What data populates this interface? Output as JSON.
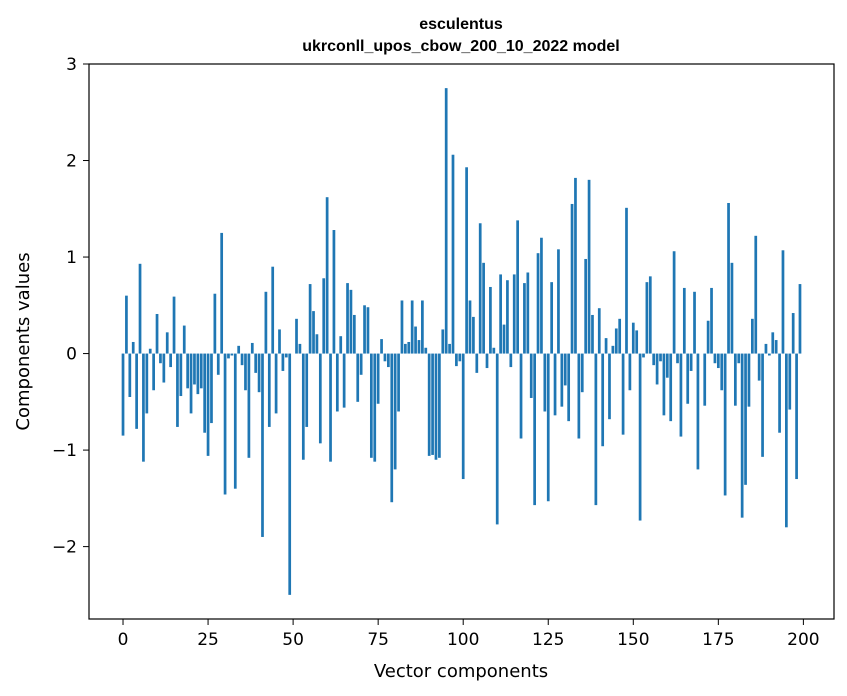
{
  "chart_data": {
    "type": "bar",
    "title": "esculentus",
    "subtitle": "ukrconll_upos_cbow_200_10_2022 model",
    "xlabel": "Vector components",
    "ylabel": "Components values",
    "xlim": [
      -10,
      209
    ],
    "ylim": [
      -2.75,
      3.0
    ],
    "xticks": [
      0,
      25,
      50,
      75,
      100,
      125,
      150,
      175,
      200
    ],
    "yticks": [
      -2,
      -1,
      0,
      1,
      2,
      3
    ],
    "ytick_labels": [
      "−2",
      "−1",
      "0",
      "1",
      "2",
      "3"
    ],
    "bar_color": "#1f77b4",
    "values": [
      -0.85,
      0.6,
      -0.45,
      0.12,
      -0.78,
      0.93,
      -1.12,
      -0.62,
      0.05,
      -0.38,
      0.41,
      -0.1,
      -0.3,
      0.22,
      -0.14,
      0.59,
      -0.76,
      -0.44,
      0.29,
      -0.36,
      -0.62,
      -0.32,
      -0.42,
      -0.36,
      -0.82,
      -1.06,
      -0.72,
      0.62,
      -0.22,
      1.25,
      -1.46,
      -0.05,
      -0.02,
      -1.4,
      0.08,
      -0.12,
      -0.38,
      -1.08,
      0.11,
      -0.2,
      -0.4,
      -1.9,
      0.64,
      -0.76,
      0.9,
      -0.62,
      0.25,
      -0.18,
      -0.04,
      -2.5,
      0.0,
      0.36,
      0.1,
      -1.1,
      -0.76,
      0.72,
      0.44,
      0.2,
      -0.93,
      0.78,
      1.62,
      -1.12,
      1.28,
      -0.6,
      0.18,
      -0.56,
      0.73,
      0.66,
      0.4,
      -0.5,
      -0.22,
      0.5,
      0.48,
      -1.08,
      -1.12,
      -0.52,
      0.15,
      -0.08,
      -0.14,
      -1.54,
      -1.2,
      -0.6,
      0.55,
      0.1,
      0.12,
      0.55,
      0.28,
      0.14,
      0.55,
      0.06,
      -1.06,
      -1.05,
      -1.1,
      -1.08,
      0.25,
      2.75,
      0.1,
      2.06,
      -0.13,
      -0.08,
      -1.3,
      1.93,
      0.55,
      0.38,
      -0.2,
      1.35,
      0.94,
      -0.15,
      0.69,
      0.06,
      -1.77,
      0.82,
      0.3,
      0.76,
      -0.14,
      0.82,
      1.38,
      -0.88,
      0.73,
      0.84,
      -0.46,
      -1.57,
      1.04,
      1.2,
      -0.6,
      -1.53,
      0.74,
      -0.64,
      1.08,
      -0.55,
      -0.33,
      -0.7,
      1.55,
      1.82,
      -0.88,
      -0.4,
      0.98,
      1.8,
      0.4,
      -1.57,
      0.47,
      -0.96,
      0.16,
      -0.68,
      0.08,
      0.26,
      0.36,
      -0.84,
      1.51,
      -0.38,
      0.32,
      0.24,
      -1.73,
      -0.04,
      0.74,
      0.8,
      -0.12,
      -0.32,
      -0.08,
      -0.64,
      -0.25,
      -0.7,
      1.06,
      -0.1,
      -0.86,
      0.68,
      -0.52,
      -0.18,
      0.64,
      -1.2,
      0.0,
      -0.54,
      0.34,
      0.68,
      -0.1,
      -0.15,
      -0.38,
      -1.47,
      1.56,
      0.94,
      -0.54,
      -0.1,
      -1.7,
      -1.36,
      -0.55,
      0.36,
      1.22,
      -0.28,
      -1.07,
      0.1,
      -0.02,
      0.22,
      0.14,
      -0.82,
      1.07,
      -1.8,
      -0.58,
      0.42,
      -1.3,
      0.72
    ]
  }
}
